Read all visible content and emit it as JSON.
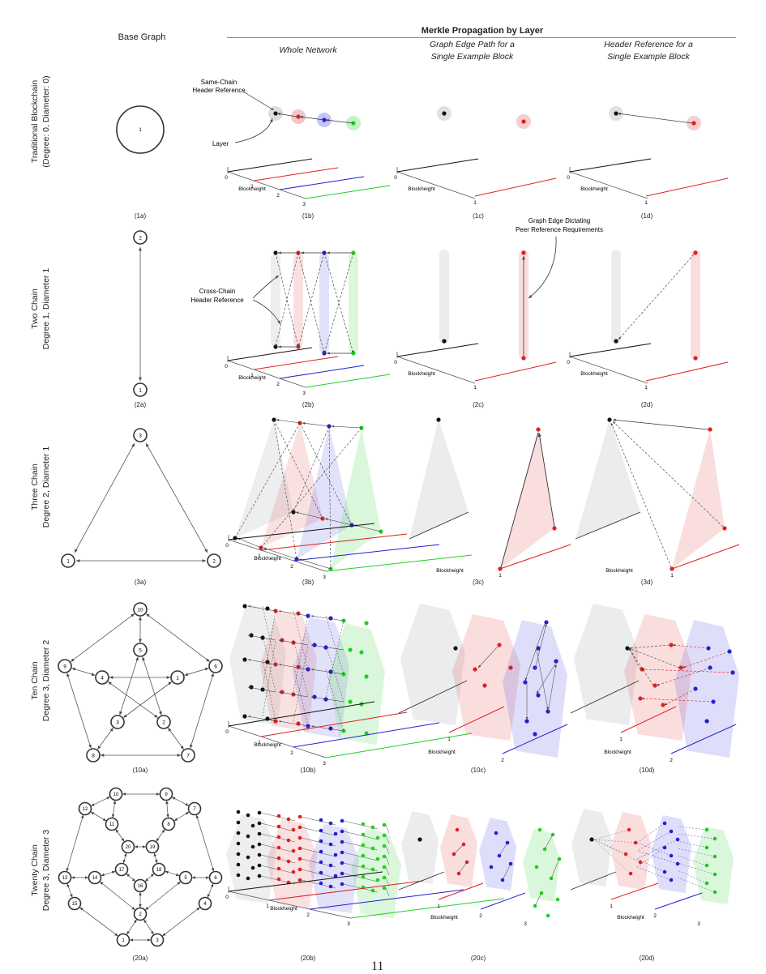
{
  "header": {
    "base_graph": "Base Graph",
    "title": "Merkle Propagation by Layer",
    "col_whole": "Whole Network",
    "col_path_l1": "Graph Edge Path for a",
    "col_path_l2": "Single Example Block",
    "col_ref_l1": "Header Reference for a",
    "col_ref_l2": "Single Example Block"
  },
  "rows": [
    {
      "l1": "Traditional Blockchain",
      "l2": "(Degree: 0, Diameter: 0)",
      "caps": [
        "(1a)",
        "(1b)",
        "(1c)",
        "(1d)"
      ]
    },
    {
      "l1": "Two Chain",
      "l2": "Degree 1, Diameter 1",
      "caps": [
        "(2a)",
        "(2b)",
        "(2c)",
        "(2d)"
      ]
    },
    {
      "l1": "Three Chain",
      "l2": "Degree 2, Diameter 1",
      "caps": [
        "(3a)",
        "(3b)",
        "(3c)",
        "(3d)"
      ]
    },
    {
      "l1": "Ten Chain",
      "l2": "Degree 3, Diameter 2",
      "caps": [
        "(10a)",
        "(10b)",
        "(10c)",
        "(10d)"
      ]
    },
    {
      "l1": "Twenty Chain",
      "l2": "Degree 3, Diameter 3",
      "caps": [
        "(20a)",
        "(20b)",
        "(20c)",
        "(20d)"
      ]
    }
  ],
  "annotations": {
    "same_chain_l1": "Same-Chain",
    "same_chain_l2": "Header Reference",
    "layer": "Layer",
    "cross_chain_l1": "Cross-Chain",
    "cross_chain_l2": "Header Reference",
    "edge_dict_l1": "Graph Edge Dictating",
    "edge_dict_l2": "Peer Reference Requirements"
  },
  "axis": {
    "label": "Blockheight",
    "t0": "0",
    "t1": "1",
    "t2": "2",
    "t3": "3"
  },
  "nodes": {
    "g1": [
      "1"
    ],
    "g2": [
      "1",
      "2"
    ],
    "g3": [
      "1",
      "2",
      "3"
    ],
    "g10": [
      "10",
      "9",
      "6",
      "5",
      "4",
      "1",
      "3",
      "2",
      "8",
      "7"
    ],
    "g20": [
      "10",
      "9",
      "12",
      "7",
      "11",
      "8",
      "20",
      "19",
      "17",
      "18",
      "13",
      "14",
      "5",
      "6",
      "16",
      "15",
      "4",
      "2",
      "1",
      "3"
    ]
  },
  "colors": {
    "chain0": "#111111",
    "chain1": "#e02020",
    "chain2": "#2020d0",
    "chain3": "#20d020"
  },
  "page_number": "11"
}
